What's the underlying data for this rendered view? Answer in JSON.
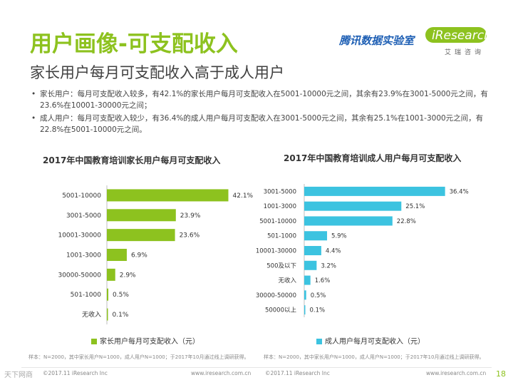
{
  "header": {
    "title": "用户画像-可支配收入",
    "subtitle": "家长用户每月可支配收入高于成人用户",
    "logo_tencent": "腾讯数据实验室",
    "logo_iresearch": "iResearch",
    "logo_iresearch_cn": "艾瑞咨询"
  },
  "bullets": [
    "家长用户：每月可支配收入较多，有42.1%的家长用户每月可支配收入在5001-10000元之间，其余有23.9%在3001-5000元之间，有23.6%在10001-30000元之间；",
    "成人用户：每月可支配收入较少，有36.4%的成人用户每月可支配收入在3001-5000元之间，其余有25.1%在1001-3000元之间，有22.8%在5001-10000元之间。"
  ],
  "bullet_symbol": "•",
  "colors": {
    "green": "#8dc21f",
    "blue": "#3cc3e0",
    "accent": "#8dc21f"
  },
  "chart_data": [
    {
      "type": "bar",
      "orientation": "horizontal",
      "title": "2017年中国教育培训家长用户每月可支配收入",
      "categories": [
        "5001-10000",
        "3001-5000",
        "10001-30000",
        "1001-3000",
        "30000-50000",
        "501-1000",
        "无收入"
      ],
      "values": [
        42.1,
        23.9,
        23.6,
        6.9,
        2.9,
        0.5,
        0.1
      ],
      "value_labels": [
        "42.1%",
        "23.9%",
        "23.6%",
        "6.9%",
        "2.9%",
        "0.5%",
        "0.1%"
      ],
      "legend": "家长用户每月可支配收入（元）",
      "color": "#8dc21f",
      "xlim": [
        0,
        45
      ]
    },
    {
      "type": "bar",
      "orientation": "horizontal",
      "title": "2017年中国教育培训成人用户每月可支配收入",
      "categories": [
        "3001-5000",
        "1001-3000",
        "5001-10000",
        "501-1000",
        "10001-30000",
        "500及以下",
        "无收入",
        "30000-50000",
        "50000以上"
      ],
      "values": [
        36.4,
        25.1,
        22.8,
        5.9,
        4.4,
        3.2,
        1.6,
        0.5,
        0.1
      ],
      "value_labels": [
        "36.4%",
        "25.1%",
        "22.8%",
        "5.9%",
        "4.4%",
        "3.2%",
        "1.6%",
        "0.5%",
        "0.1%"
      ],
      "legend": "成人用户每月可支配收入（元）",
      "color": "#3cc3e0",
      "xlim": [
        0,
        40
      ]
    }
  ],
  "notes": {
    "left": "样本：N=2000，其中家长用户N=1000，成人用户N=1000；于2017年10月通过线上调研获得。",
    "right": "样本：N=2000，其中家长用户N=1000，成人用户N=1000；于2017年10月通过线上调研获得。"
  },
  "footer": {
    "left_copyright": "©2017.11 iResearch Inc",
    "left_url": "www.iresearch.com.cn",
    "right_copyright": "©2017.11 iResearch Inc",
    "right_url": "www.iresearch.com.cn",
    "page": "18",
    "watermark": "天下网商"
  }
}
